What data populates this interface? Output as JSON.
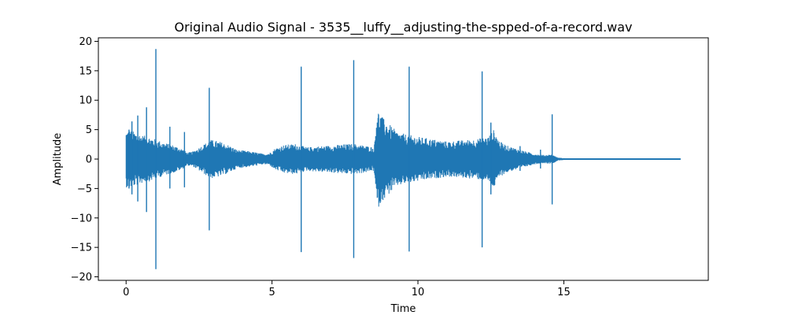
{
  "chart_data": {
    "type": "line",
    "title": "Original Audio Signal - 3535__luffy__adjusting-the-spped-of-a-record.wav",
    "xlabel": "Time",
    "ylabel": "Amplitude",
    "xlim": [
      -0.95,
      19.95
    ],
    "ylim": [
      -20.6,
      20.6
    ],
    "xticks": [
      0,
      5,
      10,
      15
    ],
    "yticks": [
      -20,
      -15,
      -10,
      -5,
      0,
      5,
      10,
      15,
      20
    ],
    "grid": false,
    "line_color": "#1f77b4",
    "duration": 19.0,
    "envelope": [
      {
        "t": 0.0,
        "a": 4.8
      },
      {
        "t": 0.1,
        "a": 5.0
      },
      {
        "t": 0.3,
        "a": 4.6
      },
      {
        "t": 0.6,
        "a": 4.0
      },
      {
        "t": 0.8,
        "a": 3.8
      },
      {
        "t": 1.0,
        "a": 3.4
      },
      {
        "t": 1.3,
        "a": 2.8
      },
      {
        "t": 1.6,
        "a": 2.4
      },
      {
        "t": 1.9,
        "a": 1.8
      },
      {
        "t": 2.1,
        "a": 1.1
      },
      {
        "t": 2.3,
        "a": 1.3
      },
      {
        "t": 2.6,
        "a": 2.3
      },
      {
        "t": 2.9,
        "a": 3.3
      },
      {
        "t": 3.2,
        "a": 3.0
      },
      {
        "t": 3.5,
        "a": 2.4
      },
      {
        "t": 3.8,
        "a": 1.6
      },
      {
        "t": 4.1,
        "a": 1.4
      },
      {
        "t": 4.4,
        "a": 1.2
      },
      {
        "t": 4.7,
        "a": 0.9
      },
      {
        "t": 4.9,
        "a": 1.0
      },
      {
        "t": 5.1,
        "a": 1.8
      },
      {
        "t": 5.4,
        "a": 2.4
      },
      {
        "t": 5.8,
        "a": 2.6
      },
      {
        "t": 6.2,
        "a": 2.0
      },
      {
        "t": 6.6,
        "a": 2.2
      },
      {
        "t": 7.0,
        "a": 2.3
      },
      {
        "t": 7.4,
        "a": 2.5
      },
      {
        "t": 7.8,
        "a": 2.6
      },
      {
        "t": 8.2,
        "a": 2.3
      },
      {
        "t": 8.5,
        "a": 2.0
      },
      {
        "t": 8.6,
        "a": 8.6
      },
      {
        "t": 8.8,
        "a": 7.0
      },
      {
        "t": 9.0,
        "a": 6.0
      },
      {
        "t": 9.3,
        "a": 4.6
      },
      {
        "t": 9.6,
        "a": 4.2
      },
      {
        "t": 10.0,
        "a": 3.8
      },
      {
        "t": 10.5,
        "a": 3.4
      },
      {
        "t": 11.0,
        "a": 3.0
      },
      {
        "t": 11.5,
        "a": 3.2
      },
      {
        "t": 12.0,
        "a": 3.4
      },
      {
        "t": 12.4,
        "a": 3.8
      },
      {
        "t": 12.6,
        "a": 5.0
      },
      {
        "t": 12.8,
        "a": 3.0
      },
      {
        "t": 13.1,
        "a": 2.2
      },
      {
        "t": 13.4,
        "a": 1.8
      },
      {
        "t": 13.7,
        "a": 1.3
      },
      {
        "t": 14.0,
        "a": 0.9
      },
      {
        "t": 14.3,
        "a": 0.7
      },
      {
        "t": 14.6,
        "a": 0.8
      },
      {
        "t": 14.8,
        "a": 0.25
      },
      {
        "t": 15.2,
        "a": 0.08
      },
      {
        "t": 16.0,
        "a": 0.05
      },
      {
        "t": 19.0,
        "a": 0.05
      }
    ],
    "spikes": [
      {
        "t": 0.1,
        "pos": 5.0,
        "neg": -5.0
      },
      {
        "t": 0.2,
        "pos": 6.4,
        "neg": -6.0
      },
      {
        "t": 0.4,
        "pos": 7.4,
        "neg": -7.2
      },
      {
        "t": 0.7,
        "pos": 8.8,
        "neg": -9.0
      },
      {
        "t": 1.02,
        "pos": 18.7,
        "neg": -18.7
      },
      {
        "t": 1.5,
        "pos": 5.5,
        "neg": -5.0
      },
      {
        "t": 2.0,
        "pos": 4.6,
        "neg": -4.8
      },
      {
        "t": 2.85,
        "pos": 12.1,
        "neg": -12.1
      },
      {
        "t": 6.0,
        "pos": 15.7,
        "neg": -15.8
      },
      {
        "t": 7.8,
        "pos": 16.8,
        "neg": -16.8
      },
      {
        "t": 9.7,
        "pos": 15.7,
        "neg": -15.7
      },
      {
        "t": 12.2,
        "pos": 14.9,
        "neg": -15.0
      },
      {
        "t": 12.5,
        "pos": 6.2,
        "neg": -6.0
      },
      {
        "t": 13.5,
        "pos": 2.2,
        "neg": -2.0
      },
      {
        "t": 14.2,
        "pos": 1.6,
        "neg": -1.6
      },
      {
        "t": 14.6,
        "pos": 7.6,
        "neg": -7.7
      }
    ]
  }
}
